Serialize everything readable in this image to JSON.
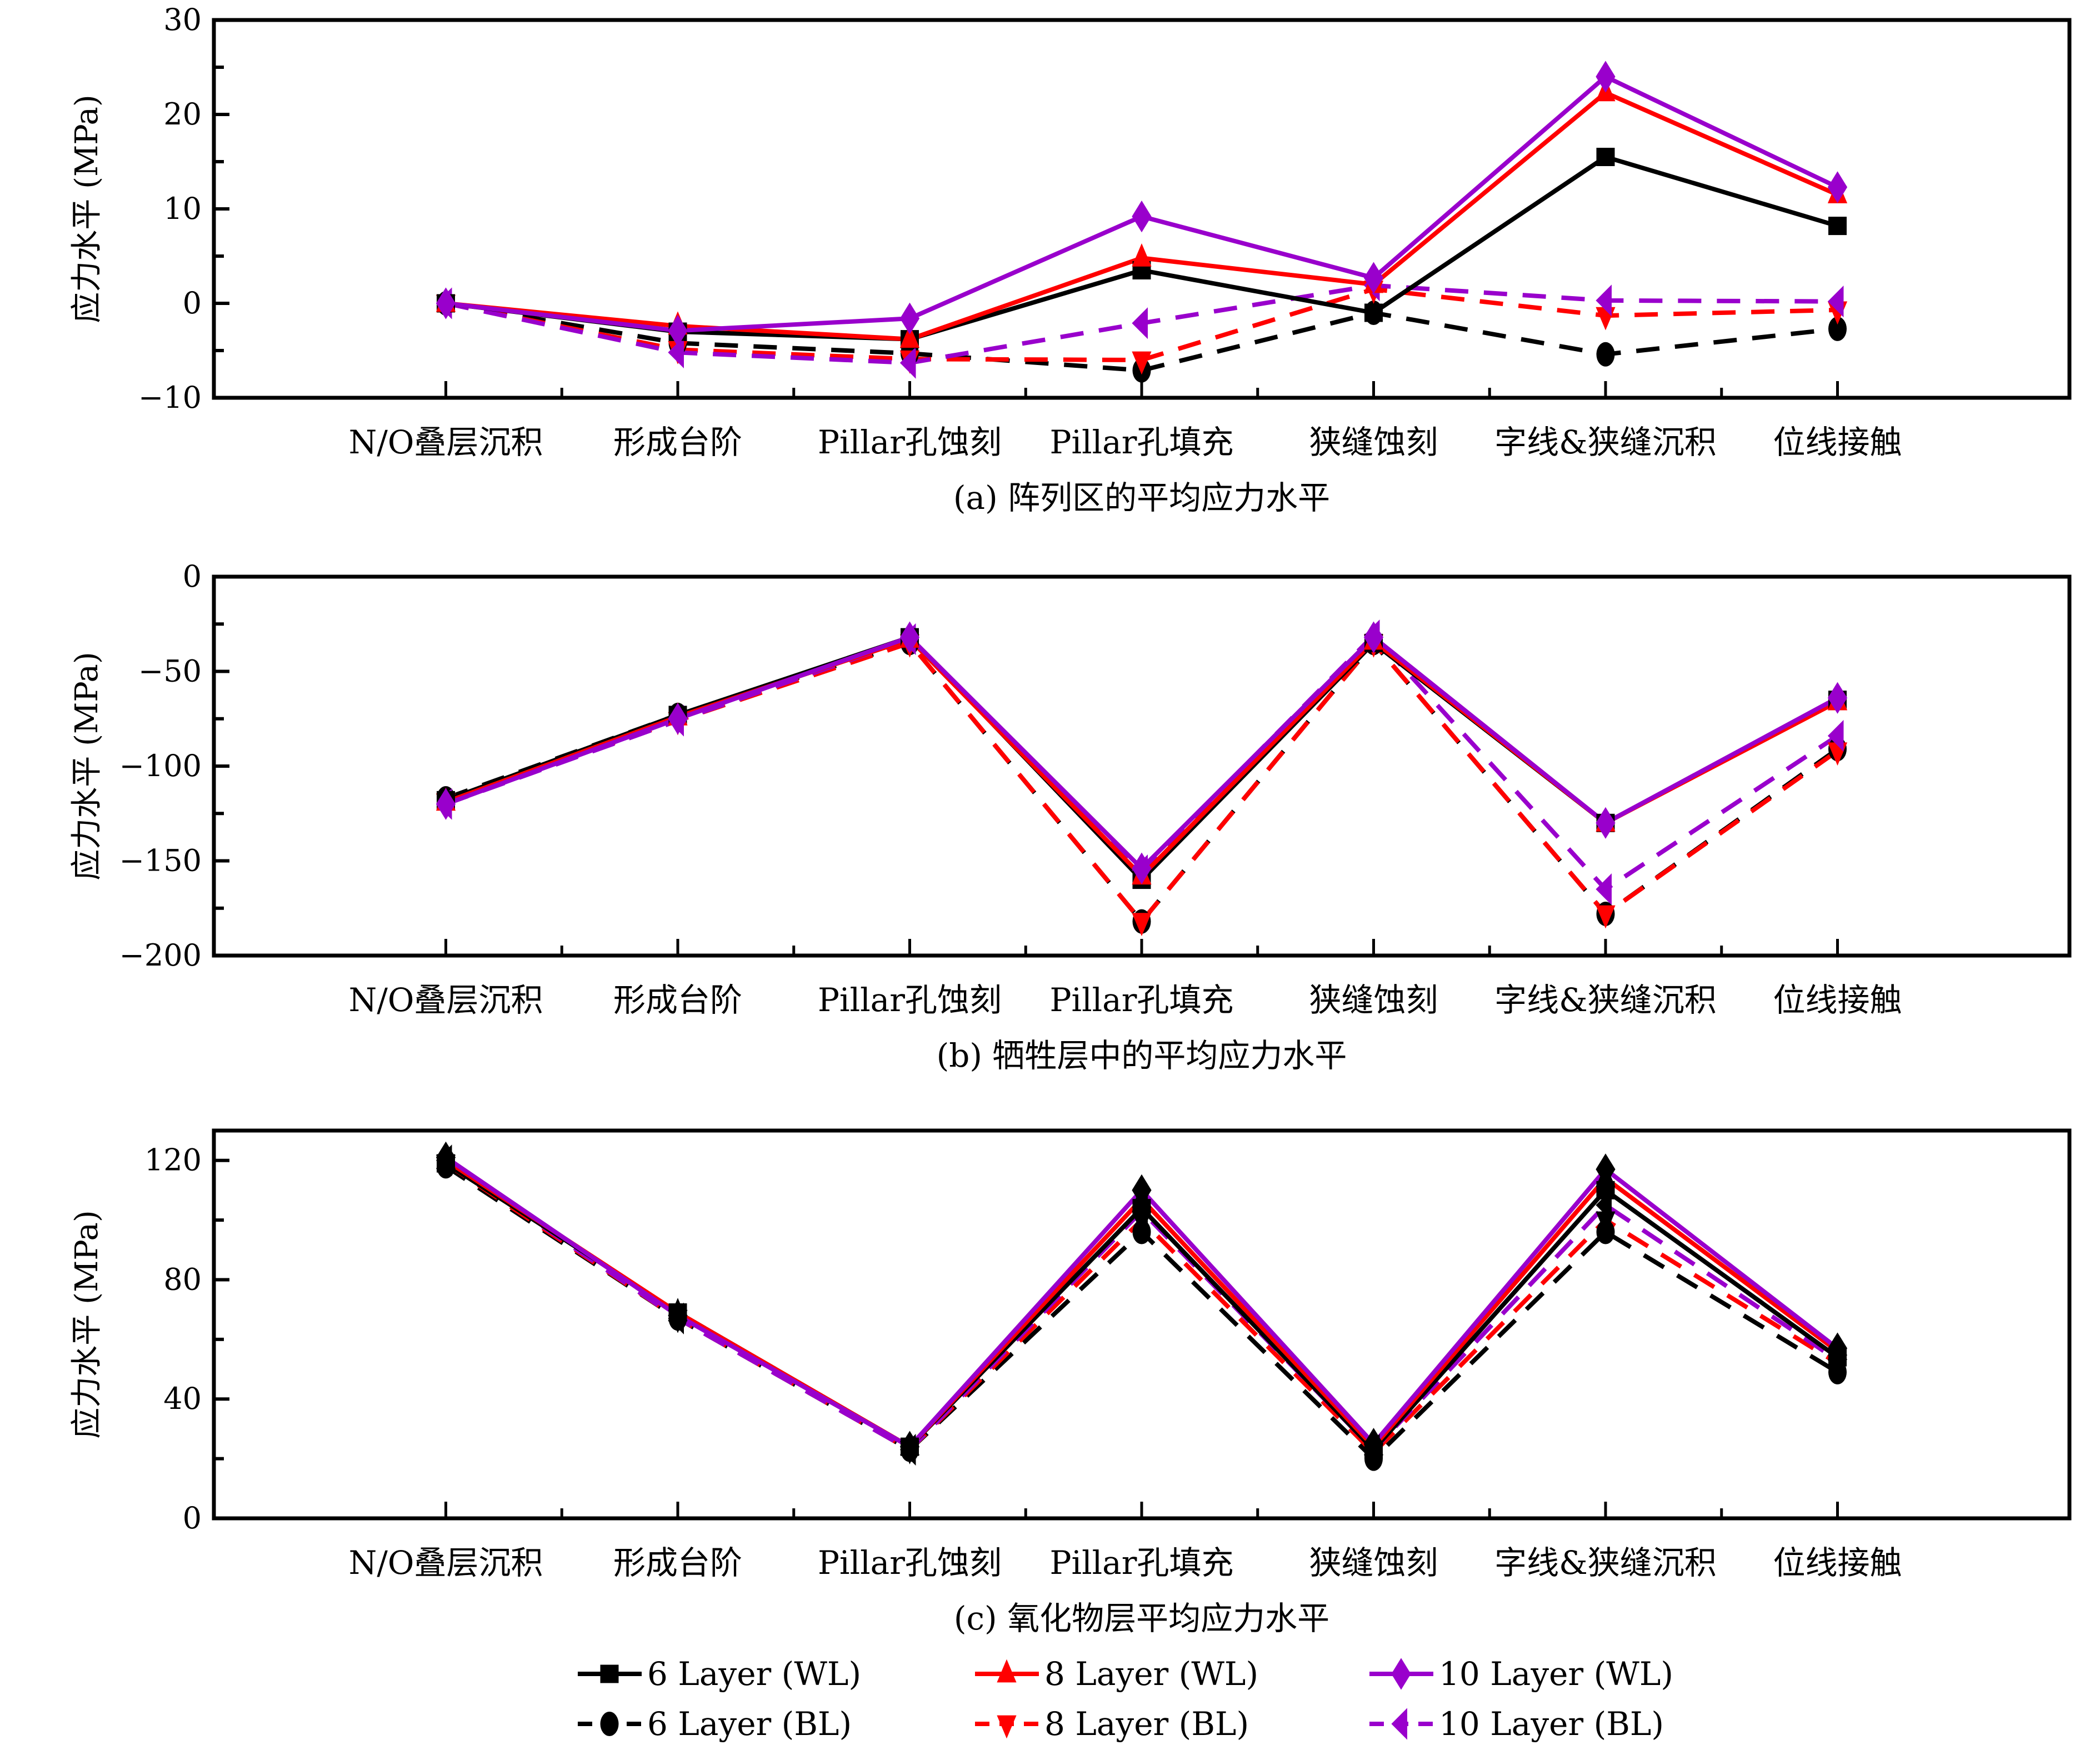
{
  "chart_data": [
    {
      "type": "line",
      "caption": "(a) 阵列区的平均应力水平",
      "ylabel": "应力水平 (MPa)",
      "xlabel": "",
      "categories": [
        "N/O叠层沉积",
        "形成台阶",
        "Pillar孔蚀刻",
        "Pillar孔填充",
        "狭缝蚀刻",
        "字线&狭缝沉积",
        "位线接触"
      ],
      "ylim": [
        -10,
        30
      ],
      "yticks": [
        -10,
        0,
        10,
        20,
        30
      ],
      "grid": false,
      "series": [
        {
          "name": "6 Layer (WL)",
          "values": [
            0,
            -3.0,
            -3.8,
            3.5,
            -1.0,
            15.5,
            8.2
          ]
        },
        {
          "name": "8 Layer (WL)",
          "values": [
            0,
            -2.4,
            -3.8,
            4.8,
            2.0,
            22.3,
            11.5
          ]
        },
        {
          "name": "10 Layer (WL)",
          "values": [
            0,
            -2.9,
            -1.6,
            9.2,
            2.7,
            24.0,
            12.3
          ]
        },
        {
          "name": "6 Layer (BL)",
          "values": [
            0,
            -4.2,
            -5.3,
            -7.1,
            -1.0,
            -5.4,
            -2.7
          ]
        },
        {
          "name": "8 Layer (BL)",
          "values": [
            0,
            -4.9,
            -5.9,
            -6.0,
            1.5,
            -1.3,
            -0.7
          ]
        },
        {
          "name": "10 Layer (BL)",
          "values": [
            0,
            -5.2,
            -6.3,
            -2.1,
            1.9,
            0.3,
            0.2
          ]
        }
      ]
    },
    {
      "type": "line",
      "caption": "(b) 牺牲层中的平均应力水平",
      "ylabel": "应力水平 (MPa)",
      "xlabel": "",
      "categories": [
        "N/O叠层沉积",
        "形成台阶",
        "Pillar孔蚀刻",
        "Pillar孔填充",
        "狭缝蚀刻",
        "字线&狭缝沉积",
        "位线接触"
      ],
      "ylim": [
        -200,
        0
      ],
      "yticks": [
        -200,
        -150,
        -100,
        -50,
        0
      ],
      "grid": false,
      "series": [
        {
          "name": "6 Layer (WL)",
          "values": [
            -118,
            -73,
            -32,
            -160,
            -35,
            -130,
            -65
          ]
        },
        {
          "name": "8 Layer (WL)",
          "values": [
            -119,
            -74,
            -33,
            -158,
            -34,
            -130,
            -66
          ]
        },
        {
          "name": "10 Layer (WL)",
          "values": [
            -120,
            -75,
            -32,
            -154,
            -32,
            -130,
            -64
          ]
        },
        {
          "name": "6 Layer (BL)",
          "values": [
            -117,
            -73,
            -35,
            -182,
            -35,
            -178,
            -91
          ]
        },
        {
          "name": "8 Layer (BL)",
          "values": [
            -119,
            -76,
            -35,
            -182,
            -35,
            -178,
            -92
          ]
        },
        {
          "name": "10 Layer (BL)",
          "values": [
            -120,
            -76,
            -33,
            -155,
            -31,
            -165,
            -84
          ]
        }
      ]
    },
    {
      "type": "line",
      "caption": "(c) 氧化物层平均应力水平",
      "ylabel": "应力水平 (MPa)",
      "xlabel": "",
      "categories": [
        "N/O叠层沉积",
        "形成台阶",
        "Pillar孔蚀刻",
        "Pillar孔填充",
        "狭缝蚀刻",
        "字线&狭缝沉积",
        "位线接触"
      ],
      "ylim": [
        0,
        130
      ],
      "yticks": [
        0,
        40,
        80,
        120
      ],
      "grid": false,
      "marker_color_override": "#000000",
      "series": [
        {
          "name": "6 Layer (WL)",
          "values": [
            119,
            69,
            24,
            104,
            23,
            110,
            54
          ]
        },
        {
          "name": "8 Layer (WL)",
          "values": [
            120,
            69,
            24,
            107,
            24,
            114,
            56
          ]
        },
        {
          "name": "10 Layer (WL)",
          "values": [
            121,
            68,
            24,
            110,
            25,
            117,
            57
          ]
        },
        {
          "name": "6 Layer (BL)",
          "values": [
            118,
            67,
            23,
            96,
            20,
            96,
            49
          ]
        },
        {
          "name": "8 Layer (BL)",
          "values": [
            119,
            67,
            23,
            100,
            22,
            100,
            52
          ]
        },
        {
          "name": "10 Layer (BL)",
          "values": [
            120,
            67,
            23,
            103,
            23,
            105,
            53
          ]
        }
      ]
    }
  ],
  "series_styles": [
    {
      "name": "6 Layer (WL)",
      "color": "#000000",
      "dash": "solid",
      "marker": "square"
    },
    {
      "name": "8 Layer (WL)",
      "color": "#ff0000",
      "dash": "solid",
      "marker": "triangle-up"
    },
    {
      "name": "10 Layer (WL)",
      "color": "#9900cc",
      "dash": "solid",
      "marker": "diamond"
    },
    {
      "name": "6 Layer (BL)",
      "color": "#000000",
      "dash": "dashed",
      "marker": "circle"
    },
    {
      "name": "8 Layer (BL)",
      "color": "#ff0000",
      "dash": "dashed",
      "marker": "triangle-down"
    },
    {
      "name": "10 Layer (BL)",
      "color": "#9900cc",
      "dash": "dashed",
      "marker": "triangle-left"
    }
  ],
  "legend": {
    "placement": "bottom-center",
    "entries": [
      "6 Layer (WL)",
      "8 Layer (WL)",
      "10 Layer (WL)",
      "6 Layer (BL)",
      "8 Layer (BL)",
      "10 Layer (BL)"
    ]
  }
}
